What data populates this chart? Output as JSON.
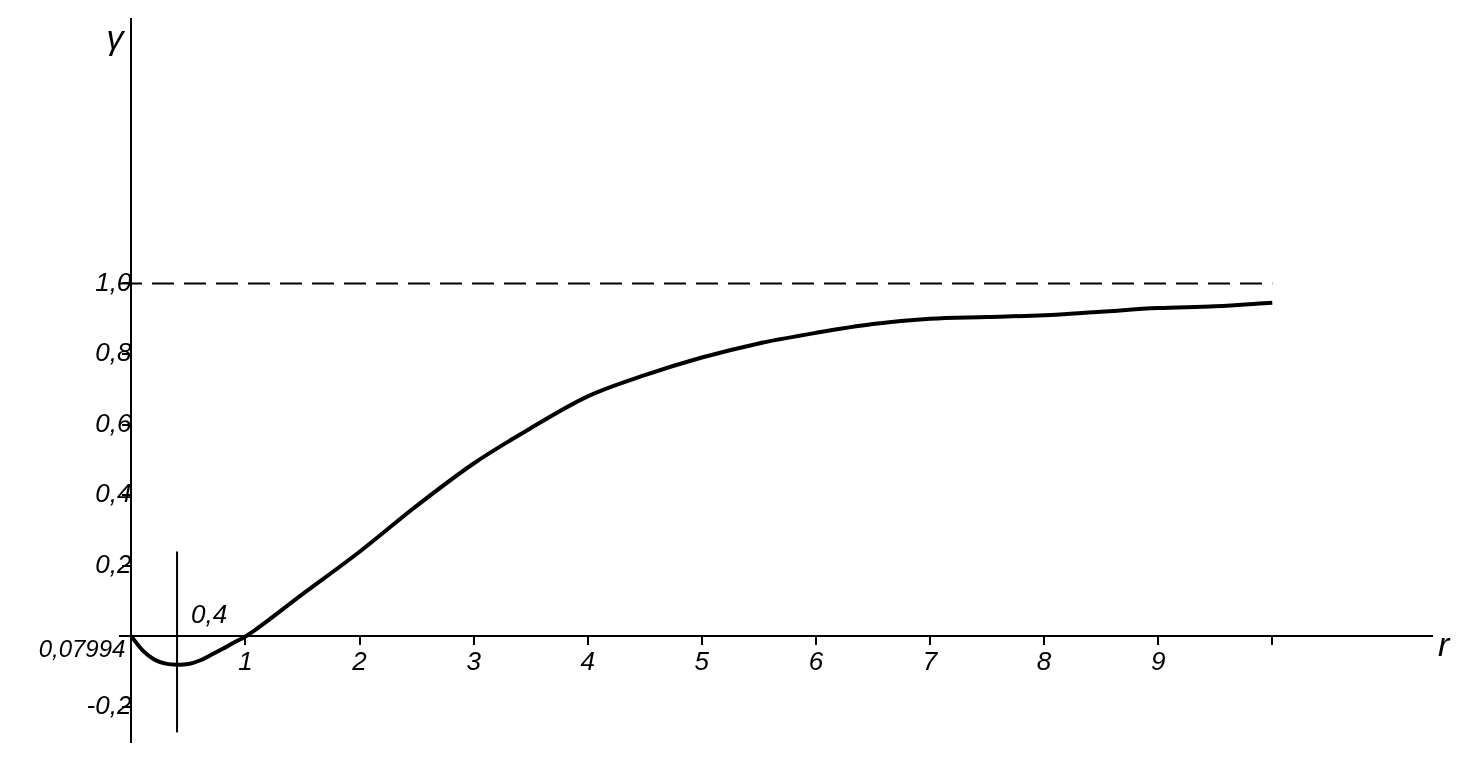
{
  "chart_data": {
    "type": "line",
    "xlabel": "r",
    "ylabel": "γ",
    "series": [
      {
        "color": "#000000",
        "x": [
          0,
          0.1,
          0.2,
          0.3,
          0.4,
          0.5,
          0.6,
          0.7,
          0.8,
          0.9,
          1,
          1.5,
          2,
          2.5,
          3,
          3.5,
          4,
          4.5,
          5,
          5.5,
          6,
          6.5,
          7,
          7.5,
          8,
          8.5,
          9,
          9.5,
          10
        ],
        "values": [
          0,
          -0.04,
          -0.065,
          -0.077,
          -0.08,
          -0.078,
          -0.068,
          -0.052,
          -0.035,
          -0.017,
          0,
          0.12,
          0.24,
          0.37,
          0.49,
          0.59,
          0.68,
          0.74,
          0.79,
          0.83,
          0.86,
          0.885,
          0.9,
          0.905,
          0.91,
          0.92,
          0.93,
          0.935,
          0.945
        ]
      }
    ],
    "xlim": [
      -0.1,
      11.4
    ],
    "ylim": [
      -0.3,
      1.75
    ],
    "xticks": [
      1,
      2,
      3,
      4,
      5,
      6,
      7,
      8,
      9,
      {
        "value": 10,
        "label": null
      }
    ],
    "yticks": [
      {
        "value": -0.2,
        "label": "-0,2"
      },
      {
        "value": 0,
        "label": null
      },
      {
        "value": 0.2,
        "label": "0,2"
      },
      {
        "value": 0.4,
        "label": "0,4"
      },
      {
        "value": 0.6,
        "label": "0,6"
      },
      {
        "value": 0.8,
        "label": "0,8"
      },
      {
        "value": 1,
        "label": "1,0"
      }
    ],
    "ref_lines": [
      {
        "axis": "y",
        "value": 1,
        "line_style": "dashed",
        "color": "#000000"
      },
      {
        "axis": "x",
        "value": 0.4,
        "label": "0,4",
        "color": "#000000"
      }
    ],
    "annotations": [
      "0,07994"
    ],
    "grid": false,
    "legend": false,
    "marker": "none",
    "line_style": "solid"
  }
}
